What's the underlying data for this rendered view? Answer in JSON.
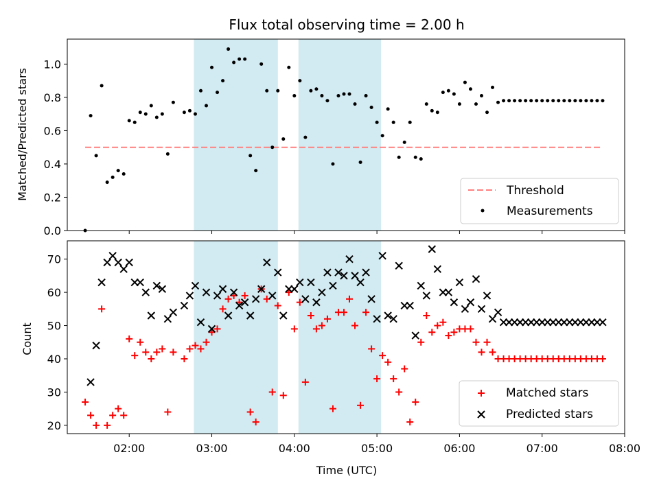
{
  "colors": {
    "threshold": "#ff7f7f",
    "measurements": "#000000",
    "matched": "#ff0000",
    "predicted": "#000000",
    "shade": "#add8e6"
  },
  "chart_data": [
    {
      "type": "scatter",
      "title": "Flux total observing time = 2.00 h",
      "xlabel": "",
      "ylabel": "Matched/Predicted stars",
      "xlim": [
        "01:15",
        "08:00"
      ],
      "ylim": [
        0,
        1.15
      ],
      "yticks": [
        0.0,
        0.2,
        0.4,
        0.6,
        0.8,
        1.0
      ],
      "ytick_labels": [
        "0.0",
        "0.2",
        "0.4",
        "0.6",
        "0.8",
        "1.0"
      ],
      "shaded_spans": [
        [
          "02:47",
          "03:48"
        ],
        [
          "04:03",
          "05:03"
        ]
      ],
      "threshold": {
        "name": "Threshold",
        "value": 0.5,
        "x_range": [
          "01:28",
          "07:44"
        ],
        "style": "dashed"
      },
      "legend": {
        "position": "lower right",
        "entries": [
          "Threshold",
          "Measurements"
        ]
      },
      "series": [
        {
          "name": "Measurements",
          "x": [
            "01:28",
            "01:32",
            "01:36",
            "01:40",
            "01:44",
            "01:48",
            "01:52",
            "01:56",
            "02:00",
            "02:04",
            "02:08",
            "02:12",
            "02:16",
            "02:20",
            "02:24",
            "02:28",
            "02:32",
            "02:40",
            "02:44",
            "02:48",
            "02:52",
            "02:56",
            "03:00",
            "03:04",
            "03:08",
            "03:12",
            "03:16",
            "03:20",
            "03:24",
            "03:28",
            "03:32",
            "03:36",
            "03:40",
            "03:44",
            "03:48",
            "03:52",
            "03:56",
            "04:00",
            "04:04",
            "04:08",
            "04:12",
            "04:16",
            "04:20",
            "04:24",
            "04:28",
            "04:32",
            "04:36",
            "04:40",
            "04:44",
            "04:48",
            "04:52",
            "04:56",
            "05:00",
            "05:04",
            "05:08",
            "05:12",
            "05:16",
            "05:20",
            "05:24",
            "05:28",
            "05:32",
            "05:36",
            "05:40",
            "05:44",
            "05:48",
            "05:52",
            "05:56",
            "06:00",
            "06:04",
            "06:08",
            "06:12",
            "06:16",
            "06:20",
            "06:24",
            "06:28",
            "06:32",
            "06:36",
            "06:40",
            "06:44",
            "06:48",
            "06:52",
            "06:56",
            "07:00",
            "07:04",
            "07:08",
            "07:12",
            "07:16",
            "07:20",
            "07:24",
            "07:28",
            "07:32",
            "07:36",
            "07:40",
            "07:44"
          ],
          "y": [
            0.0,
            0.69,
            0.45,
            0.87,
            0.29,
            0.32,
            0.36,
            0.34,
            0.66,
            0.65,
            0.71,
            0.7,
            0.75,
            0.68,
            0.7,
            0.46,
            0.77,
            0.71,
            0.72,
            0.7,
            0.84,
            0.75,
            0.98,
            0.83,
            0.9,
            1.09,
            1.01,
            1.03,
            1.03,
            0.45,
            0.36,
            1.0,
            0.84,
            0.5,
            0.84,
            0.55,
            0.98,
            0.81,
            0.9,
            0.56,
            0.84,
            0.85,
            0.81,
            0.78,
            0.4,
            0.81,
            0.82,
            0.82,
            0.76,
            0.41,
            0.81,
            0.74,
            0.65,
            0.57,
            0.73,
            0.65,
            0.44,
            0.53,
            0.65,
            0.44,
            0.43,
            0.76,
            0.72,
            0.71,
            0.83,
            0.84,
            0.82,
            0.76,
            0.89,
            0.85,
            0.76,
            0.81,
            0.71,
            0.86,
            0.77,
            0.78,
            0.78,
            0.78,
            0.78,
            0.78,
            0.78,
            0.78,
            0.78,
            0.78,
            0.78,
            0.78,
            0.78,
            0.78,
            0.78,
            0.78,
            0.78,
            0.78,
            0.78,
            0.78
          ]
        }
      ]
    },
    {
      "type": "scatter",
      "title": "",
      "xlabel": "Time (UTC)",
      "ylabel": "Count",
      "xlim": [
        "01:15",
        "08:00"
      ],
      "ylim": [
        17.5,
        75.5
      ],
      "xtick_labels": [
        "02:00",
        "03:00",
        "04:00",
        "05:00",
        "06:00",
        "07:00",
        "08:00"
      ],
      "yticks": [
        20,
        30,
        40,
        50,
        60,
        70
      ],
      "ytick_labels": [
        "20",
        "30",
        "40",
        "50",
        "60",
        "70"
      ],
      "shaded_spans": [
        [
          "02:47",
          "03:48"
        ],
        [
          "04:03",
          "05:03"
        ]
      ],
      "legend": {
        "position": "lower right",
        "entries": [
          "Matched stars",
          "Predicted stars"
        ]
      },
      "series": [
        {
          "name": "Matched stars",
          "marker": "plus",
          "x": [
            "01:28",
            "01:32",
            "01:36",
            "01:40",
            "01:44",
            "01:48",
            "01:52",
            "01:56",
            "02:00",
            "02:04",
            "02:08",
            "02:12",
            "02:16",
            "02:20",
            "02:24",
            "02:28",
            "02:32",
            "02:40",
            "02:44",
            "02:48",
            "02:52",
            "02:56",
            "03:00",
            "03:04",
            "03:08",
            "03:12",
            "03:16",
            "03:20",
            "03:24",
            "03:28",
            "03:32",
            "03:36",
            "03:40",
            "03:44",
            "03:48",
            "03:52",
            "03:56",
            "04:00",
            "04:04",
            "04:08",
            "04:12",
            "04:16",
            "04:20",
            "04:24",
            "04:28",
            "04:32",
            "04:36",
            "04:40",
            "04:44",
            "04:48",
            "04:52",
            "04:56",
            "05:00",
            "05:04",
            "05:08",
            "05:12",
            "05:16",
            "05:20",
            "05:24",
            "05:28",
            "05:32",
            "05:36",
            "05:40",
            "05:44",
            "05:48",
            "05:52",
            "05:56",
            "06:00",
            "06:04",
            "06:08",
            "06:12",
            "06:16",
            "06:20",
            "06:24",
            "06:28",
            "06:32",
            "06:36",
            "06:40",
            "06:44",
            "06:48",
            "06:52",
            "06:56",
            "07:00",
            "07:04",
            "07:08",
            "07:12",
            "07:16",
            "07:20",
            "07:24",
            "07:28",
            "07:32",
            "07:36",
            "07:40",
            "07:44"
          ],
          "y": [
            27,
            23,
            20,
            55,
            20,
            23,
            25,
            23,
            46,
            41,
            45,
            42,
            40,
            42,
            43,
            24,
            42,
            40,
            43,
            44,
            43,
            45,
            48,
            49,
            55,
            58,
            59,
            57,
            59,
            24,
            21,
            61,
            58,
            30,
            56,
            29,
            60,
            49,
            57,
            33,
            53,
            49,
            50,
            52,
            25,
            54,
            54,
            58,
            50,
            26,
            54,
            43,
            34,
            41,
            39,
            34,
            30,
            37,
            21,
            27,
            45,
            53,
            48,
            50,
            51,
            47,
            48,
            49,
            49,
            49,
            45,
            42,
            45,
            42,
            40,
            40,
            40,
            40,
            40,
            40,
            40,
            40,
            40,
            40,
            40,
            40,
            40,
            40,
            40,
            40,
            40,
            40,
            40,
            40
          ]
        },
        {
          "name": "Predicted stars",
          "marker": "x",
          "x": [
            "01:28",
            "01:32",
            "01:36",
            "01:40",
            "01:44",
            "01:48",
            "01:52",
            "01:56",
            "02:00",
            "02:04",
            "02:08",
            "02:12",
            "02:16",
            "02:20",
            "02:24",
            "02:28",
            "02:32",
            "02:40",
            "02:44",
            "02:48",
            "02:52",
            "02:56",
            "03:00",
            "03:04",
            "03:08",
            "03:12",
            "03:16",
            "03:20",
            "03:24",
            "03:28",
            "03:32",
            "03:36",
            "03:40",
            "03:44",
            "03:48",
            "03:52",
            "03:56",
            "04:00",
            "04:04",
            "04:08",
            "04:12",
            "04:16",
            "04:20",
            "04:24",
            "04:28",
            "04:32",
            "04:36",
            "04:40",
            "04:44",
            "04:48",
            "04:52",
            "04:56",
            "05:00",
            "05:04",
            "05:08",
            "05:12",
            "05:16",
            "05:20",
            "05:24",
            "05:28",
            "05:32",
            "05:36",
            "05:40",
            "05:44",
            "05:48",
            "05:52",
            "05:56",
            "06:00",
            "06:04",
            "06:08",
            "06:12",
            "06:16",
            "06:20",
            "06:24",
            "06:28",
            "06:32",
            "06:36",
            "06:40",
            "06:44",
            "06:48",
            "06:52",
            "06:56",
            "07:00",
            "07:04",
            "07:08",
            "07:12",
            "07:16",
            "07:20",
            "07:24",
            "07:28",
            "07:32",
            "07:36",
            "07:40",
            "07:44"
          ],
          "y": [
            null,
            33,
            44,
            63,
            69,
            71,
            69,
            67,
            69,
            63,
            63,
            60,
            53,
            62,
            61,
            52,
            54,
            56,
            59,
            62,
            51,
            60,
            49,
            59,
            61,
            53,
            60,
            56,
            57,
            53,
            58,
            61,
            69,
            59,
            66,
            53,
            61,
            61,
            63,
            58,
            63,
            57,
            60,
            66,
            62,
            66,
            65,
            70,
            65,
            63,
            66,
            58,
            52,
            71,
            53,
            52,
            68,
            56,
            56,
            47,
            62,
            59,
            73,
            67,
            60,
            60,
            57,
            63,
            55,
            57,
            64,
            55,
            59,
            52,
            54,
            51,
            51,
            51,
            51,
            51,
            51,
            51,
            51,
            51,
            51,
            51,
            51,
            51,
            51,
            51,
            51,
            51,
            51,
            51
          ]
        }
      ]
    }
  ]
}
